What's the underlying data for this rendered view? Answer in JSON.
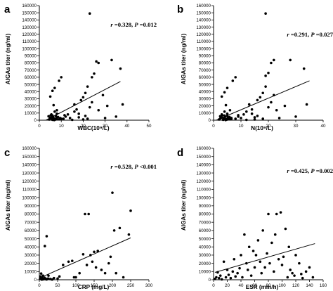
{
  "chart_data": [
    {
      "panel": "a",
      "type": "scatter",
      "xlabel": "WBC(10⁹/L)",
      "ylabel": "AIGAs titer (ng/ml)",
      "xlim": [
        0,
        50
      ],
      "ylim": [
        0,
        160000
      ],
      "xticks": [
        0,
        10,
        20,
        30,
        40,
        50
      ],
      "yticks": [
        0,
        10000,
        20000,
        30000,
        40000,
        50000,
        60000,
        70000,
        80000,
        90000,
        100000,
        110000,
        120000,
        130000,
        140000,
        150000,
        160000
      ],
      "stat": {
        "r_label": "r",
        "r_text": " =0.328, ",
        "p_label": "P",
        "p_text": " =0.012"
      },
      "trendline": [
        [
          3,
          0
        ],
        [
          37,
          54000
        ]
      ],
      "points": [
        [
          4.5,
          1000
        ],
        [
          5,
          2500
        ],
        [
          5.5,
          4000
        ],
        [
          6,
          500
        ],
        [
          6.5,
          3000
        ],
        [
          7,
          1500
        ],
        [
          7.5,
          6000
        ],
        [
          8,
          2000
        ],
        [
          5.2,
          7000
        ],
        [
          6.2,
          5000
        ],
        [
          4.8,
          3500
        ],
        [
          7.2,
          800
        ],
        [
          8.5,
          4500
        ],
        [
          9,
          1200
        ],
        [
          5.8,
          1800
        ],
        [
          6.8,
          200
        ],
        [
          7.8,
          3200
        ],
        [
          4.2,
          5500
        ],
        [
          5.5,
          8000
        ],
        [
          6,
          6500
        ],
        [
          10,
          2000
        ],
        [
          8,
          9000
        ],
        [
          7,
          12000
        ],
        [
          6.5,
          21000
        ],
        [
          5,
          33000
        ],
        [
          6,
          41000
        ],
        [
          7,
          45000
        ],
        [
          9,
          55000
        ],
        [
          10,
          60000
        ],
        [
          8,
          14000
        ],
        [
          12,
          5000
        ],
        [
          14,
          3000
        ],
        [
          13,
          8000
        ],
        [
          16,
          12000
        ],
        [
          17,
          15000
        ],
        [
          18,
          4000
        ],
        [
          19,
          28000
        ],
        [
          20,
          32000
        ],
        [
          21,
          38000
        ],
        [
          22,
          47000
        ],
        [
          23,
          18000
        ],
        [
          24,
          25000
        ],
        [
          25,
          65000
        ],
        [
          26,
          82000
        ],
        [
          27,
          14000
        ],
        [
          30,
          3000
        ],
        [
          31,
          20000
        ],
        [
          33,
          84000
        ],
        [
          35,
          5000
        ],
        [
          37,
          72000
        ],
        [
          38,
          22000
        ],
        [
          11,
          2000
        ],
        [
          15,
          500
        ],
        [
          18,
          9000
        ],
        [
          21,
          6000
        ],
        [
          24,
          60000
        ],
        [
          20,
          1000
        ],
        [
          23,
          149000
        ],
        [
          27,
          80000
        ],
        [
          29,
          35000
        ],
        [
          9.5,
          3000
        ],
        [
          11.5,
          7000
        ],
        [
          16,
          22000
        ],
        [
          22,
          2000
        ]
      ]
    },
    {
      "panel": "b",
      "type": "scatter",
      "xlabel": "N(10⁹/L)",
      "ylabel": "AIGAs titer (ng/ml)",
      "xlim": [
        0,
        40
      ],
      "ylim": [
        0,
        160000
      ],
      "xticks": [
        0,
        10,
        20,
        30,
        40
      ],
      "yticks": [
        0,
        10000,
        20000,
        30000,
        40000,
        50000,
        60000,
        70000,
        80000,
        90000,
        100000,
        110000,
        120000,
        130000,
        140000,
        150000,
        160000
      ],
      "stat": {
        "r_label": "r",
        "r_text": " =0.291, ",
        "p_label": "P",
        "p_text": " =0.027"
      },
      "trendline": [
        [
          1,
          0
        ],
        [
          35,
          55000
        ]
      ],
      "points": [
        [
          2,
          1000
        ],
        [
          2.5,
          2500
        ],
        [
          3,
          4000
        ],
        [
          3.5,
          500
        ],
        [
          4,
          3000
        ],
        [
          4.5,
          1500
        ],
        [
          5,
          6000
        ],
        [
          5.5,
          2000
        ],
        [
          3.2,
          7000
        ],
        [
          4.2,
          5000
        ],
        [
          2.8,
          3500
        ],
        [
          4.8,
          800
        ],
        [
          5.8,
          4500
        ],
        [
          6,
          1200
        ],
        [
          3.6,
          1800
        ],
        [
          4.4,
          200
        ],
        [
          5.2,
          3200
        ],
        [
          2.4,
          5500
        ],
        [
          3,
          8000
        ],
        [
          4,
          6500
        ],
        [
          6.5,
          2000
        ],
        [
          5,
          9000
        ],
        [
          4,
          12000
        ],
        [
          4.5,
          21000
        ],
        [
          3,
          33000
        ],
        [
          4,
          39000
        ],
        [
          5,
          45000
        ],
        [
          7,
          55000
        ],
        [
          8,
          60000
        ],
        [
          6,
          14000
        ],
        [
          9,
          5000
        ],
        [
          10,
          3000
        ],
        [
          11,
          8000
        ],
        [
          12,
          12000
        ],
        [
          14,
          15000
        ],
        [
          15,
          4000
        ],
        [
          16,
          28000
        ],
        [
          17,
          32000
        ],
        [
          18,
          38000
        ],
        [
          19,
          47000
        ],
        [
          20,
          18000
        ],
        [
          21,
          25000
        ],
        [
          20,
          66000
        ],
        [
          22,
          84000
        ],
        [
          23,
          14000
        ],
        [
          24,
          3000
        ],
        [
          26,
          20000
        ],
        [
          28,
          84000
        ],
        [
          30,
          5000
        ],
        [
          33,
          72000
        ],
        [
          34,
          22000
        ],
        [
          8,
          2000
        ],
        [
          12,
          500
        ],
        [
          14,
          9000
        ],
        [
          16,
          6000
        ],
        [
          19,
          62000
        ],
        [
          15,
          1000
        ],
        [
          19,
          149000
        ],
        [
          21,
          80000
        ],
        [
          22,
          35000
        ],
        [
          6.5,
          3000
        ],
        [
          9,
          7000
        ],
        [
          13,
          22000
        ],
        [
          18,
          2000
        ]
      ]
    },
    {
      "panel": "c",
      "type": "scatter",
      "xlabel": "CRP (mg/L)",
      "ylabel": "AIGAs titer (ng/ml)",
      "xlim": [
        0,
        300
      ],
      "ylim": [
        0,
        160000
      ],
      "xticks": [
        0,
        50,
        100,
        150,
        200,
        250,
        300
      ],
      "yticks": [
        0,
        10000,
        20000,
        30000,
        40000,
        50000,
        60000,
        70000,
        80000,
        90000,
        100000,
        110000,
        120000,
        130000,
        140000,
        150000,
        160000
      ],
      "stat": {
        "r_label": "r",
        "r_text": " =0.528, ",
        "p_label": "P",
        "p_text": " <0.001"
      },
      "trendline": [
        [
          0,
          2000
        ],
        [
          250,
          51000
        ]
      ],
      "points": [
        [
          2,
          1000
        ],
        [
          4,
          3000
        ],
        [
          6,
          500
        ],
        [
          8,
          2000
        ],
        [
          10,
          5000
        ],
        [
          12,
          1500
        ],
        [
          5,
          7500
        ],
        [
          3,
          4000
        ],
        [
          14,
          2500
        ],
        [
          16,
          800
        ],
        [
          18,
          1200
        ],
        [
          20,
          400
        ],
        [
          15,
          41000
        ],
        [
          20,
          53000
        ],
        [
          25,
          5000
        ],
        [
          35,
          300
        ],
        [
          40,
          2000
        ],
        [
          50,
          1500
        ],
        [
          55,
          4000
        ],
        [
          65,
          18000
        ],
        [
          80,
          22000
        ],
        [
          90,
          23000
        ],
        [
          95,
          3000
        ],
        [
          100,
          3000
        ],
        [
          110,
          8000
        ],
        [
          120,
          31000
        ],
        [
          125,
          80000
        ],
        [
          130,
          18000
        ],
        [
          135,
          80000
        ],
        [
          140,
          30000
        ],
        [
          145,
          22000
        ],
        [
          150,
          34000
        ],
        [
          155,
          15000
        ],
        [
          160,
          35000
        ],
        [
          170,
          12000
        ],
        [
          180,
          8000
        ],
        [
          190,
          20000
        ],
        [
          195,
          28000
        ],
        [
          200,
          106000
        ],
        [
          205,
          60000
        ],
        [
          210,
          8000
        ],
        [
          220,
          63000
        ],
        [
          230,
          3000
        ],
        [
          245,
          55000
        ],
        [
          250,
          84000
        ],
        [
          7,
          200
        ],
        [
          11,
          600
        ],
        [
          24,
          1500
        ],
        [
          30,
          900
        ]
      ]
    },
    {
      "panel": "d",
      "type": "scatter",
      "xlabel": "ESR (mm/h)",
      "ylabel": "AIGAs titer (ng/ml)",
      "xlim": [
        0,
        160
      ],
      "ylim": [
        0,
        160000
      ],
      "xticks": [
        0,
        20,
        40,
        60,
        80,
        100,
        120,
        140,
        160
      ],
      "yticks": [
        0,
        10000,
        20000,
        30000,
        40000,
        50000,
        60000,
        70000,
        80000,
        90000,
        100000,
        110000,
        120000,
        130000,
        140000,
        150000,
        160000
      ],
      "stat": {
        "r_label": "r",
        "r_text": " =0.425, ",
        "p_label": "P",
        "p_text": " =0.002"
      },
      "trendline": [
        [
          2,
          9000
        ],
        [
          148,
          44000
        ]
      ],
      "points": [
        [
          2,
          1000
        ],
        [
          4,
          3000
        ],
        [
          6,
          9000
        ],
        [
          8,
          2000
        ],
        [
          10,
          5000
        ],
        [
          12,
          500
        ],
        [
          15,
          22000
        ],
        [
          18,
          3000
        ],
        [
          20,
          12000
        ],
        [
          22,
          6000
        ],
        [
          25,
          2000
        ],
        [
          28,
          10000
        ],
        [
          30,
          25000
        ],
        [
          32,
          4000
        ],
        [
          35,
          8000
        ],
        [
          38,
          14000
        ],
        [
          40,
          30000
        ],
        [
          42,
          3000
        ],
        [
          45,
          55000
        ],
        [
          48,
          20000
        ],
        [
          50,
          12000
        ],
        [
          52,
          40000
        ],
        [
          55,
          5000
        ],
        [
          58,
          35000
        ],
        [
          60,
          15000
        ],
        [
          62,
          30000
        ],
        [
          65,
          48000
        ],
        [
          68,
          22000
        ],
        [
          70,
          8000
        ],
        [
          72,
          60000
        ],
        [
          75,
          15000
        ],
        [
          78,
          32000
        ],
        [
          80,
          80000
        ],
        [
          82,
          20000
        ],
        [
          85,
          45000
        ],
        [
          88,
          10000
        ],
        [
          90,
          55000
        ],
        [
          92,
          80000
        ],
        [
          95,
          25000
        ],
        [
          98,
          82000
        ],
        [
          100,
          18000
        ],
        [
          102,
          28000
        ],
        [
          105,
          62000
        ],
        [
          108,
          3000
        ],
        [
          110,
          40000
        ],
        [
          112,
          12000
        ],
        [
          115,
          8000
        ],
        [
          118,
          5000
        ],
        [
          120,
          30000
        ],
        [
          125,
          20000
        ],
        [
          128,
          7000
        ],
        [
          130,
          2000
        ],
        [
          135,
          10000
        ],
        [
          140,
          15000
        ],
        [
          145,
          3000
        ]
      ]
    }
  ]
}
